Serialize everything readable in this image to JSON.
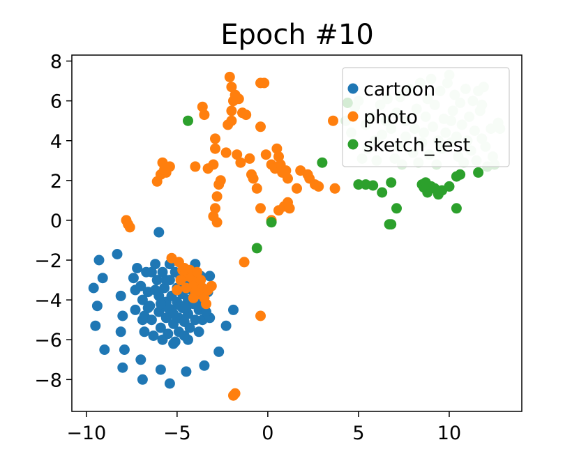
{
  "chart_data": {
    "type": "scatter",
    "title": "Epoch #10",
    "xlabel": "",
    "ylabel": "",
    "xlim": [
      -10.8,
      14
    ],
    "ylim": [
      -9.6,
      8.3
    ],
    "x_ticks": [
      -10,
      -5,
      0,
      5,
      10
    ],
    "x_tick_labels": [
      "−10",
      "−5",
      "0",
      "5",
      "10"
    ],
    "y_ticks": [
      -8,
      -6,
      -4,
      -2,
      0,
      2,
      4,
      6,
      8
    ],
    "y_tick_labels": [
      "−8",
      "−6",
      "−4",
      "−2",
      "0",
      "2",
      "4",
      "6",
      "8"
    ],
    "grid": false,
    "legend_position": "top-right",
    "series": [
      {
        "name": "cartoon",
        "color": "#1f77b4",
        "points": [
          [
            -9.6,
            -3.4
          ],
          [
            -9.3,
            -2.0
          ],
          [
            -9.1,
            -2.9
          ],
          [
            -9.4,
            -4.3
          ],
          [
            -9.5,
            -5.3
          ],
          [
            -9.0,
            -6.5
          ],
          [
            -8.3,
            -1.7
          ],
          [
            -8.0,
            -7.4
          ],
          [
            -8.1,
            -3.8
          ],
          [
            -8.0,
            -4.8
          ],
          [
            -8.1,
            -5.6
          ],
          [
            -7.9,
            -6.5
          ],
          [
            -7.4,
            -2.9
          ],
          [
            -7.3,
            -4.5
          ],
          [
            -7.0,
            -7.0
          ],
          [
            -6.9,
            -8.0
          ],
          [
            -6.0,
            -0.6
          ],
          [
            -5.9,
            -7.5
          ],
          [
            -5.4,
            -8.2
          ],
          [
            -5.2,
            -6.2
          ],
          [
            -4.5,
            -7.6
          ],
          [
            -4.4,
            -6.0
          ],
          [
            -3.6,
            -5.0
          ],
          [
            -3.5,
            -7.3
          ],
          [
            -3.2,
            -2.8
          ],
          [
            -2.7,
            -6.6
          ],
          [
            -2.3,
            -5.3
          ],
          [
            -1.9,
            -4.5
          ],
          [
            -3.5,
            -3.8
          ],
          [
            -3.2,
            -4.9
          ],
          [
            -7.3,
            -3.5
          ],
          [
            -7.2,
            -2.4
          ],
          [
            -7.0,
            -3.3
          ],
          [
            -6.9,
            -4.0
          ],
          [
            -6.8,
            -4.8
          ],
          [
            -6.8,
            -5.6
          ],
          [
            -6.7,
            -2.6
          ],
          [
            -6.6,
            -3.6
          ],
          [
            -6.5,
            -4.3
          ],
          [
            -6.4,
            -5.0
          ],
          [
            -6.3,
            -5.8
          ],
          [
            -6.2,
            -2.2
          ],
          [
            -6.1,
            -3.0
          ],
          [
            -6.0,
            -3.8
          ],
          [
            -6.0,
            -4.6
          ],
          [
            -5.9,
            -5.4
          ],
          [
            -5.8,
            -6.0
          ],
          [
            -5.8,
            -2.6
          ],
          [
            -5.7,
            -3.4
          ],
          [
            -5.6,
            -4.1
          ],
          [
            -5.6,
            -4.9
          ],
          [
            -5.5,
            -5.7
          ],
          [
            -5.4,
            -2.2
          ],
          [
            -5.4,
            -3.0
          ],
          [
            -5.3,
            -3.8
          ],
          [
            -5.3,
            -4.5
          ],
          [
            -5.2,
            -5.2
          ],
          [
            -5.1,
            -6.1
          ],
          [
            -5.1,
            -2.6
          ],
          [
            -5.0,
            -3.4
          ],
          [
            -5.0,
            -4.1
          ],
          [
            -4.9,
            -4.9
          ],
          [
            -4.9,
            -5.6
          ],
          [
            -4.8,
            -2.9
          ],
          [
            -4.7,
            -3.7
          ],
          [
            -4.7,
            -4.4
          ],
          [
            -4.6,
            -5.1
          ],
          [
            -4.6,
            -5.8
          ],
          [
            -4.5,
            -3.2
          ],
          [
            -4.4,
            -4.0
          ],
          [
            -4.4,
            -4.7
          ],
          [
            -4.3,
            -5.4
          ],
          [
            -4.2,
            -2.6
          ],
          [
            -4.2,
            -3.5
          ],
          [
            -4.1,
            -4.2
          ],
          [
            -4.0,
            -5.0
          ],
          [
            -4.0,
            -2.2
          ],
          [
            -3.9,
            -3.0
          ],
          [
            -3.9,
            -3.8
          ],
          [
            -3.8,
            -4.5
          ],
          [
            -3.8,
            -5.6
          ],
          [
            -3.7,
            -2.8
          ],
          [
            -3.6,
            -3.4
          ],
          [
            -3.6,
            -4.2
          ],
          [
            -3.4,
            -4.6
          ],
          [
            -3.3,
            -3.6
          ],
          [
            -6.6,
            -4.4
          ],
          [
            -5.5,
            -4.4
          ],
          [
            -4.8,
            -4.3
          ],
          [
            -6.2,
            -3.5
          ],
          [
            -5.2,
            -4.7
          ],
          [
            -5.9,
            -4.2
          ],
          [
            -4.5,
            -4.4
          ],
          [
            -6.9,
            -5.0
          ],
          [
            -5.6,
            -3.0
          ],
          [
            -6.4,
            -2.6
          ]
        ]
      },
      {
        "name": "photo",
        "color": "#ff7f0e",
        "points": [
          [
            -7.8,
            0.0
          ],
          [
            -7.7,
            -0.2
          ],
          [
            -7.6,
            -0.35
          ],
          [
            -6.1,
            1.95
          ],
          [
            -5.9,
            2.3
          ],
          [
            -5.8,
            2.9
          ],
          [
            -5.6,
            2.4
          ],
          [
            -5.7,
            2.55
          ],
          [
            -5.4,
            2.7
          ],
          [
            -4.0,
            2.7
          ],
          [
            -3.5,
            5.3
          ],
          [
            -3.6,
            5.7
          ],
          [
            -3.3,
            2.6
          ],
          [
            -3.0,
            2.8
          ],
          [
            -2.9,
            4.1
          ],
          [
            -2.9,
            3.6
          ],
          [
            -2.7,
            1.8
          ],
          [
            -2.6,
            2.0
          ],
          [
            -2.8,
            1.2
          ],
          [
            -2.9,
            0.6
          ],
          [
            -3.0,
            0.2
          ],
          [
            -2.8,
            -0.1
          ],
          [
            -2.3,
            3.4
          ],
          [
            -2.2,
            4.8
          ],
          [
            -2.0,
            5.0
          ],
          [
            -2.0,
            5.5
          ],
          [
            -1.9,
            6.0
          ],
          [
            -1.8,
            6.3
          ],
          [
            -1.6,
            6.1
          ],
          [
            -1.7,
            3.3
          ],
          [
            -1.4,
            5.4
          ],
          [
            -1.5,
            2.9
          ],
          [
            -1.2,
            5.3
          ],
          [
            -1.0,
            3.1
          ],
          [
            -0.9,
            2.3
          ],
          [
            -0.8,
            2.1
          ],
          [
            -0.6,
            1.6
          ],
          [
            -0.4,
            4.7
          ],
          [
            -0.4,
            6.9
          ],
          [
            -0.2,
            6.9
          ],
          [
            -0.1,
            3.3
          ],
          [
            -0.4,
            0.6
          ],
          [
            0.2,
            2.8
          ],
          [
            0.4,
            2.6
          ],
          [
            0.5,
            3.6
          ],
          [
            0.6,
            3.2
          ],
          [
            0.7,
            2.8
          ],
          [
            0.8,
            2.4
          ],
          [
            1.0,
            2.5
          ],
          [
            1.1,
            2.1
          ],
          [
            0.6,
            0.5
          ],
          [
            0.9,
            0.7
          ],
          [
            1.1,
            0.9
          ],
          [
            1.2,
            0.6
          ],
          [
            1.6,
            1.6
          ],
          [
            1.8,
            2.5
          ],
          [
            2.2,
            2.3
          ],
          [
            2.3,
            2.1
          ],
          [
            2.6,
            1.8
          ],
          [
            2.8,
            1.7
          ],
          [
            3.6,
            5.0
          ],
          [
            3.7,
            1.6
          ],
          [
            0.2,
            0.0
          ],
          [
            -2.1,
            7.2
          ],
          [
            -2.0,
            6.7
          ],
          [
            -1.3,
            -2.1
          ],
          [
            -0.4,
            -4.8
          ],
          [
            -1.9,
            -8.8
          ],
          [
            -1.8,
            -8.7
          ],
          [
            -5.3,
            -1.9
          ],
          [
            -4.9,
            -2.1
          ],
          [
            -4.7,
            -2.5
          ],
          [
            -4.5,
            -2.8
          ],
          [
            -4.3,
            -2.5
          ],
          [
            -4.2,
            -2.9
          ],
          [
            -4.1,
            -3.3
          ],
          [
            -3.9,
            -2.6
          ],
          [
            -3.8,
            -3.7
          ],
          [
            -3.7,
            -3.0
          ],
          [
            -3.6,
            -3.4
          ],
          [
            -3.5,
            -3.9
          ],
          [
            -3.3,
            -3.5
          ],
          [
            -3.1,
            -3.3
          ],
          [
            -4.0,
            -3.6
          ],
          [
            -4.5,
            -3.4
          ],
          [
            -4.8,
            -3.0
          ],
          [
            -5.0,
            -3.5
          ],
          [
            -3.4,
            -4.2
          ],
          [
            -4.6,
            -2.4
          ],
          [
            -4.1,
            -3.9
          ]
        ]
      },
      {
        "name": "sketch_test",
        "color": "#2ca02c",
        "points": [
          [
            -4.4,
            5.0
          ],
          [
            -0.6,
            -1.4
          ],
          [
            0.2,
            -0.1
          ],
          [
            3.0,
            2.9
          ],
          [
            4.4,
            5.9
          ],
          [
            5.0,
            1.8
          ],
          [
            5.4,
            1.8
          ],
          [
            5.8,
            1.75
          ],
          [
            6.3,
            1.4
          ],
          [
            6.8,
            1.9
          ],
          [
            7.1,
            0.6
          ],
          [
            6.8,
            -0.2
          ],
          [
            8.5,
            1.8
          ],
          [
            8.6,
            1.65
          ],
          [
            8.8,
            1.4
          ],
          [
            9.0,
            1.7
          ],
          [
            9.2,
            1.6
          ],
          [
            9.6,
            1.5
          ],
          [
            10.0,
            1.7
          ],
          [
            10.4,
            2.2
          ],
          [
            10.6,
            2.3
          ],
          [
            11.6,
            2.4
          ],
          [
            10.4,
            0.6
          ],
          [
            6.7,
            -0.2
          ],
          [
            8.7,
            1.9
          ],
          [
            9.4,
            1.3
          ]
        ]
      },
      {
        "name": "",
        "color": "#d8eed8",
        "points": [
          [
            4.3,
            5.0
          ],
          [
            4.6,
            4.4
          ],
          [
            4.8,
            5.7
          ],
          [
            5.0,
            6.0
          ],
          [
            5.2,
            3.1
          ],
          [
            5.4,
            4.8
          ],
          [
            5.5,
            3.6
          ],
          [
            5.7,
            5.2
          ],
          [
            5.9,
            4.0
          ],
          [
            6.0,
            3.0
          ],
          [
            6.2,
            5.8
          ],
          [
            6.3,
            4.3
          ],
          [
            6.5,
            5.0
          ],
          [
            6.6,
            6.1
          ],
          [
            6.8,
            4.6
          ],
          [
            7.0,
            3.1
          ],
          [
            7.1,
            5.4
          ],
          [
            7.2,
            3.7
          ],
          [
            7.3,
            6.2
          ],
          [
            7.4,
            2.8
          ],
          [
            7.6,
            4.2
          ],
          [
            7.6,
            5.0
          ],
          [
            7.8,
            6.6
          ],
          [
            8.0,
            3.4
          ],
          [
            8.1,
            4.6
          ],
          [
            8.2,
            5.6
          ],
          [
            8.3,
            2.9
          ],
          [
            8.4,
            6.9
          ],
          [
            8.5,
            3.9
          ],
          [
            8.6,
            4.4
          ],
          [
            8.7,
            5.2
          ],
          [
            8.8,
            6.1
          ],
          [
            8.9,
            3.3
          ],
          [
            9.0,
            7.1
          ],
          [
            9.1,
            4.7
          ],
          [
            9.2,
            5.8
          ],
          [
            9.3,
            2.8
          ],
          [
            9.4,
            4.0
          ],
          [
            9.5,
            6.5
          ],
          [
            9.6,
            3.6
          ],
          [
            9.7,
            5.1
          ],
          [
            9.8,
            4.4
          ],
          [
            9.9,
            6.9
          ],
          [
            10.0,
            7.3
          ],
          [
            10.1,
            3.9
          ],
          [
            10.2,
            5.5
          ],
          [
            10.3,
            6.3
          ],
          [
            10.4,
            4.2
          ],
          [
            10.5,
            3.2
          ],
          [
            10.6,
            5.9
          ],
          [
            10.7,
            4.8
          ],
          [
            10.8,
            2.9
          ],
          [
            10.9,
            6.6
          ],
          [
            11.0,
            4.0
          ],
          [
            11.1,
            5.2
          ],
          [
            11.2,
            3.5
          ],
          [
            11.3,
            6.0
          ],
          [
            11.4,
            4.5
          ],
          [
            11.5,
            3.0
          ],
          [
            11.6,
            6.5
          ],
          [
            11.7,
            5.5
          ],
          [
            11.8,
            4.1
          ],
          [
            12.0,
            3.7
          ],
          [
            12.1,
            2.7
          ],
          [
            12.3,
            4.6
          ],
          [
            12.4,
            3.2
          ],
          [
            12.5,
            2.8
          ],
          [
            12.7,
            4.9
          ],
          [
            12.8,
            4.6
          ],
          [
            11.8,
            5.8
          ],
          [
            11.9,
            6.7
          ],
          [
            10.1,
            5.0
          ]
        ]
      }
    ]
  }
}
